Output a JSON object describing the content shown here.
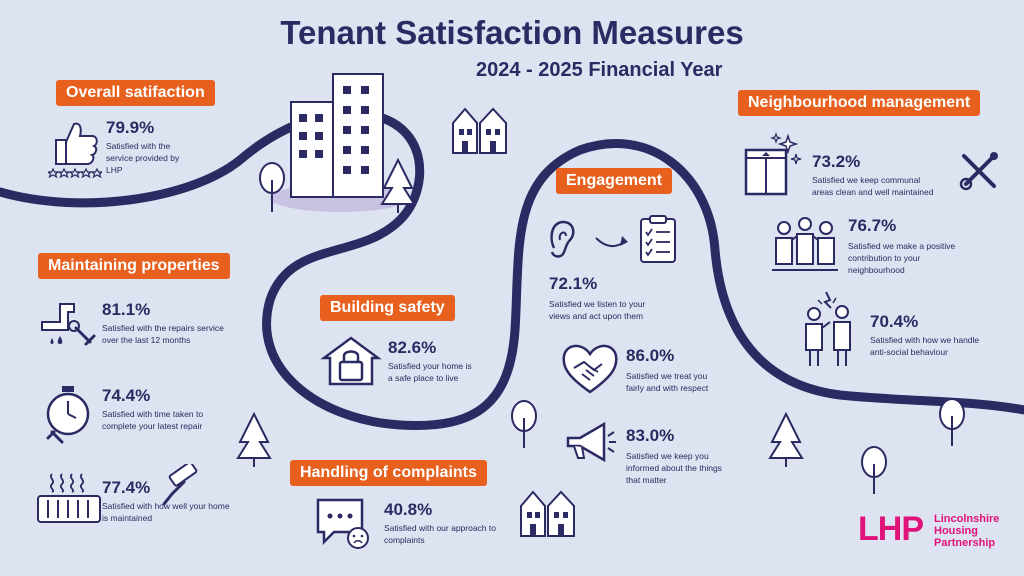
{
  "header": {
    "title": "Tenant Satisfaction Measures",
    "subtitle": "2024 - 2025 Financial Year"
  },
  "sections": {
    "overall": "Overall satifaction",
    "maintaining": "Maintaining properties",
    "building_safety": "Building safety",
    "complaints": "Handling of complaints",
    "engagement": "Engagement",
    "neighbourhood": "Neighbourhood management"
  },
  "measures": {
    "overall_service": {
      "pct": "79.9%",
      "text": "Satisfied with the service provided by LHP"
    },
    "repairs_service": {
      "pct": "81.1%",
      "text": "Satisfied with the repairs service over the last 12 months"
    },
    "repair_time": {
      "pct": "74.4%",
      "text": "Satisfied with time taken to complete your latest repair"
    },
    "home_maintained": {
      "pct": "77.4%",
      "text": "Satisfied with how well your home is maintained"
    },
    "safe_home": {
      "pct": "82.6%",
      "text": "Satisfied your home is a safe place to live"
    },
    "complaints": {
      "pct": "40.8%",
      "text": "Satisfied with our approach to complaints"
    },
    "listen": {
      "pct": "72.1%",
      "text": "Satisfied we listen to your views and act upon them"
    },
    "respect": {
      "pct": "86.0%",
      "text": "Satisfied we treat you fairly and with respect"
    },
    "informed": {
      "pct": "83.0%",
      "text": "Satisfied we keep you informed about the things that matter"
    },
    "communal": {
      "pct": "73.2%",
      "text": "Satisfied we keep communal areas clean and well maintained"
    },
    "contribution": {
      "pct": "76.7%",
      "text": "Satisfied we make a positive contribution to your neighbourhood"
    },
    "asb": {
      "pct": "70.4%",
      "text": "Satisfied with how we handle anti-social behaviour"
    }
  },
  "logo": {
    "mark": "LHP",
    "line1": "Lincolnshire",
    "line2": "Housing",
    "line3": "Partnership"
  },
  "colors": {
    "background": "#dde3f0",
    "navy": "#2b2a62",
    "orange": "#e8601e",
    "brand_pink": "#e0137a"
  }
}
